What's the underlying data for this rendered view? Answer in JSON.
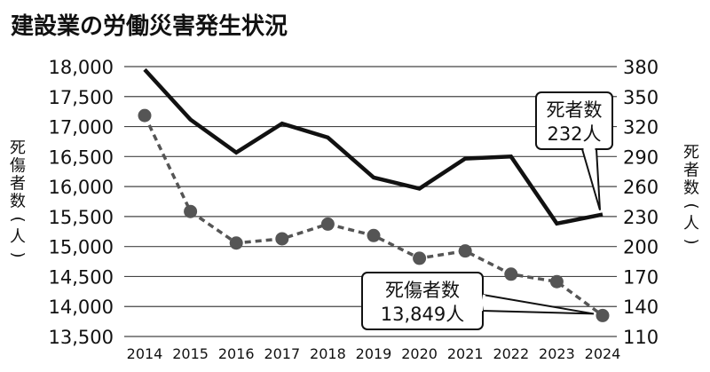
{
  "chart_data": {
    "type": "line",
    "title": "建設業の労働災害発生状況",
    "x": [
      "2014",
      "2015",
      "2016",
      "2017",
      "2018",
      "2019",
      "2020",
      "2021",
      "2022",
      "2023",
      "2024"
    ],
    "left_axis": {
      "label": "死傷者数（人）",
      "ylim": [
        13500,
        18000
      ],
      "ticks": [
        "13,500",
        "14,000",
        "14,500",
        "15,000",
        "15,500",
        "16,000",
        "16,500",
        "17,000",
        "17,500",
        "18,000"
      ],
      "tick_values": [
        13500,
        14000,
        14500,
        15000,
        15500,
        16000,
        16500,
        17000,
        17500,
        18000
      ]
    },
    "right_axis": {
      "label": "死者数（人）",
      "ylim": [
        110,
        380
      ],
      "ticks": [
        "110",
        "140",
        "170",
        "200",
        "230",
        "260",
        "290",
        "320",
        "350",
        "380"
      ],
      "tick_values": [
        110,
        140,
        170,
        200,
        230,
        260,
        290,
        320,
        350,
        380
      ]
    },
    "series": [
      {
        "name": "死者数",
        "axis": "right",
        "style": "solid",
        "color": "#111111",
        "values": [
          377,
          327,
          294,
          323,
          309,
          269,
          258,
          288,
          290,
          223,
          232
        ]
      },
      {
        "name": "死傷者数",
        "axis": "left",
        "style": "dashed-markers",
        "color": "#555555",
        "values": [
          17184,
          15584,
          15058,
          15129,
          15374,
          15183,
          14804,
          14926,
          14539,
          14414,
          13849
        ]
      }
    ],
    "annotations": [
      {
        "series": "死者数",
        "line1": "死者数",
        "line2": "232人"
      },
      {
        "series": "死傷者数",
        "line1": "死傷者数",
        "line2": "13,849人"
      }
    ],
    "grid": true
  }
}
